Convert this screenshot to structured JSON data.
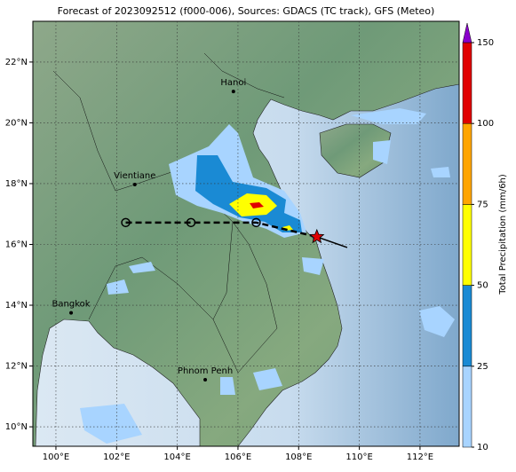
{
  "title": "Forecast of 2023092512 (f000-006), Sources: GDACS (TC track), GFS (Meteo)",
  "map": {
    "xlim": [
      99.24,
      113.29
    ],
    "ylim": [
      9.36,
      23.34
    ],
    "xticks": [
      {
        "value": 100,
        "label": "100°E"
      },
      {
        "value": 102,
        "label": "102°E"
      },
      {
        "value": 104,
        "label": "104°E"
      },
      {
        "value": 106,
        "label": "106°E"
      },
      {
        "value": 108,
        "label": "108°E"
      },
      {
        "value": 110,
        "label": "110°E"
      },
      {
        "value": 112,
        "label": "112°E"
      }
    ],
    "yticks": [
      {
        "value": 10,
        "label": "10°N"
      },
      {
        "value": 12,
        "label": "12°N"
      },
      {
        "value": 14,
        "label": "14°N"
      },
      {
        "value": 16,
        "label": "16°N"
      },
      {
        "value": 18,
        "label": "18°N"
      },
      {
        "value": 20,
        "label": "20°N"
      },
      {
        "value": 22,
        "label": "22°N"
      }
    ],
    "grid": true
  },
  "cities": [
    {
      "name": "Hanoi",
      "lon": 105.85,
      "lat": 21.03
    },
    {
      "name": "Vientiane",
      "lon": 102.6,
      "lat": 17.97
    },
    {
      "name": "Bangkok",
      "lon": 100.5,
      "lat": 13.75
    },
    {
      "name": "Phnom Penh",
      "lon": 104.92,
      "lat": 11.55
    }
  ],
  "track": {
    "lon": [
      102.3,
      104.45,
      106.6
    ],
    "lat": [
      16.72,
      16.72,
      16.72
    ]
  },
  "current": {
    "lon": 108.6,
    "lat": 16.25
  },
  "heading": {
    "lon": 109.6,
    "lat": 15.9
  },
  "colorbar": {
    "label": "Total Precipitation (mm/6h)",
    "bounds": [
      10,
      25,
      50,
      75,
      100,
      150
    ],
    "colors": [
      "#a8d4ff",
      "#1a8ad4",
      "#ffff00",
      "#ffa500",
      "#e00000"
    ],
    "extend_color": "#8a00cc"
  }
}
